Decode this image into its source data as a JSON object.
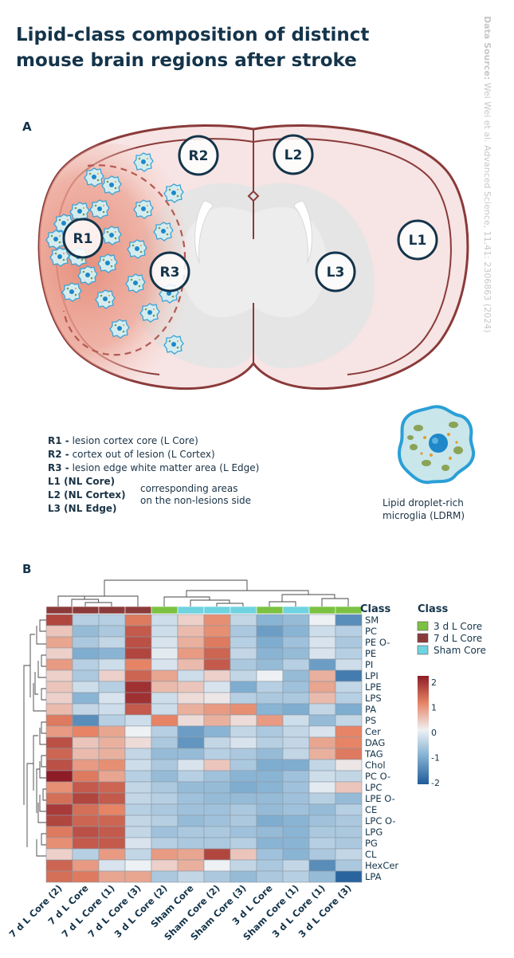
{
  "title_line1": "Lipid-class composition of distinct",
  "title_line2": "mouse brain regions after stroke",
  "source_label": "Data Source:",
  "source_text": "Wei Wei et al. Advanced Science, 11,41: 2306863 (2024)",
  "panel_a": "A",
  "panel_b": "B",
  "regions": {
    "r1": "R1",
    "r2": "R2",
    "r3": "R3",
    "l1": "L1",
    "l2": "L2",
    "l3": "L3"
  },
  "legend": {
    "r1_key": "R1 -",
    "r1_text": "lesion cortex core (L Core)",
    "r2_key": "R2 -",
    "r2_text": "cortex out of lesion (L Cortex)",
    "r3_key": "R3 -",
    "r3_text": "lesion edge white matter area (L Edge)",
    "l1_key": "L1 (NL Core)",
    "l2_key": "L2 (NL Cortex)",
    "l3_key": "L3 (NL Edge)",
    "corr_line1": "corresponding areas",
    "corr_line2": "on the non-lesions side",
    "ldrm_line1": "Lipid droplet-rich",
    "ldrm_line2": "microglia (LDRM)"
  },
  "colors": {
    "brain_outline": "#8a3a3a",
    "brain_fill": "#f7e6e6",
    "lesion": "#e99a86",
    "navy": "#14344a",
    "cell": "#3aa3d6",
    "cell_fill": "#cfe7ec",
    "class_3d": "#7cc242",
    "class_7d": "#8b3a3a",
    "class_sham": "#6fd3e0"
  },
  "chart_data": {
    "type": "heatmap",
    "title": "",
    "columns": [
      "7 d L Core (2)",
      "7 d L Core",
      "7 d L Core (1)",
      "7 d L Core (3)",
      "3 d L Core (2)",
      "Sham Core",
      "Sham Core (2)",
      "Sham Core (3)",
      "3 d L Core",
      "Sham Core (1)",
      "3 d L Core (1)",
      "3 d L Core (3)"
    ],
    "column_classes": [
      "7 d L Core",
      "7 d L Core",
      "7 d L Core",
      "7 d L Core",
      "3 d L Core",
      "Sham Core",
      "Sham Core",
      "Sham Core",
      "3 d L Core",
      "Sham Core",
      "3 d L Core",
      "3 d L Core"
    ],
    "rows": [
      "SM",
      "PC",
      "PE O-",
      "PE",
      "PI",
      "LPI",
      "LPE",
      "LPS",
      "PA",
      "PS",
      "Cer",
      "DAG",
      "TAG",
      "Chol",
      "PC O-",
      "LPC",
      "LPE O-",
      "CE",
      "LPC O-",
      "LPG",
      "PG",
      "CL",
      "HexCer",
      "LPA"
    ],
    "values": [
      [
        1.6,
        -0.5,
        -0.5,
        1.1,
        -0.3,
        0.3,
        0.9,
        -0.4,
        -0.9,
        -0.8,
        0.0,
        -1.4
      ],
      [
        0.4,
        -0.8,
        -0.6,
        1.4,
        -0.3,
        0.5,
        0.9,
        -0.6,
        -1.2,
        -0.9,
        -0.3,
        -0.5
      ],
      [
        0.7,
        -0.6,
        -0.4,
        1.5,
        -0.2,
        0.6,
        1.1,
        -0.5,
        -1.0,
        -0.7,
        -0.2,
        -0.6
      ],
      [
        0.3,
        -1.0,
        -0.9,
        1.6,
        -0.1,
        0.8,
        1.3,
        -0.4,
        -0.9,
        -0.8,
        -0.2,
        -0.5
      ],
      [
        0.8,
        -0.5,
        -0.3,
        1.0,
        -0.2,
        0.5,
        1.4,
        -0.6,
        -0.8,
        -0.5,
        -1.2,
        -0.3
      ],
      [
        0.3,
        -0.6,
        0.3,
        1.3,
        0.7,
        -0.3,
        0.3,
        -0.4,
        0.0,
        -0.8,
        0.6,
        -1.6
      ],
      [
        0.4,
        -0.3,
        -0.5,
        1.8,
        0.5,
        0.4,
        -0.2,
        -1.0,
        -0.5,
        -0.7,
        0.7,
        -0.4
      ],
      [
        0.3,
        -0.9,
        -0.2,
        1.8,
        -0.3,
        0.2,
        0.1,
        -0.5,
        -0.6,
        -0.6,
        0.5,
        -0.5
      ],
      [
        0.5,
        -0.4,
        -0.3,
        1.4,
        -0.3,
        0.6,
        0.8,
        0.9,
        -0.9,
        -1.0,
        -0.4,
        -1.0
      ],
      [
        1.1,
        -1.4,
        -0.5,
        -0.3,
        1.0,
        0.2,
        0.6,
        0.2,
        0.8,
        -0.3,
        -0.8,
        -0.4
      ],
      [
        0.8,
        1.0,
        0.7,
        0.0,
        -0.5,
        -1.2,
        -0.9,
        -0.4,
        -0.6,
        -0.4,
        -0.2,
        1.0
      ],
      [
        1.5,
        0.4,
        0.6,
        0.2,
        -0.6,
        -1.3,
        -0.4,
        -0.2,
        -0.5,
        -0.4,
        0.7,
        1.0
      ],
      [
        1.3,
        0.5,
        0.6,
        -0.4,
        -0.8,
        -0.8,
        -0.5,
        -0.6,
        -0.8,
        -0.4,
        0.6,
        1.1
      ],
      [
        1.5,
        0.8,
        0.9,
        -0.3,
        -0.6,
        -0.2,
        0.4,
        -0.6,
        -1.0,
        -1.0,
        -0.4,
        0.1
      ],
      [
        2.2,
        1.1,
        0.7,
        -0.5,
        -0.8,
        -0.5,
        -0.7,
        -0.9,
        -0.9,
        -0.7,
        -0.3,
        -0.4
      ],
      [
        0.9,
        1.4,
        1.3,
        -0.4,
        -0.6,
        -0.8,
        -0.8,
        -1.0,
        -0.9,
        -0.7,
        -0.1,
        0.4
      ],
      [
        1.2,
        1.6,
        1.4,
        -0.4,
        -0.5,
        -0.7,
        -0.8,
        -0.8,
        -0.8,
        -0.7,
        -0.5,
        -0.8
      ],
      [
        1.7,
        1.2,
        1.0,
        -0.5,
        -0.6,
        -0.7,
        -0.7,
        -0.6,
        -0.8,
        -0.7,
        -0.8,
        -0.5
      ],
      [
        1.6,
        1.3,
        1.3,
        -0.4,
        -0.5,
        -0.8,
        -0.7,
        -0.6,
        -1.0,
        -0.9,
        -0.7,
        -0.6
      ],
      [
        1.1,
        1.5,
        1.4,
        -0.4,
        -0.7,
        -0.6,
        -0.6,
        -0.7,
        -0.8,
        -0.9,
        -0.6,
        -0.6
      ],
      [
        0.9,
        1.4,
        1.4,
        -0.2,
        -0.5,
        -0.6,
        -0.6,
        -0.5,
        -0.9,
        -0.9,
        -0.5,
        -0.6
      ],
      [
        0.3,
        -0.5,
        0.8,
        -0.4,
        0.8,
        0.7,
        1.6,
        0.4,
        -0.7,
        -0.9,
        -0.6,
        -0.4
      ],
      [
        1.3,
        0.8,
        -0.2,
        0.0,
        0.3,
        0.6,
        0.0,
        -0.4,
        -0.6,
        -0.4,
        -1.4,
        -0.6
      ],
      [
        1.2,
        1.1,
        0.7,
        0.7,
        -0.6,
        -0.4,
        -0.6,
        -0.8,
        -0.6,
        -0.5,
        -0.8,
        -1.9
      ]
    ],
    "colorbar": {
      "min": -2,
      "max": 2,
      "ticks": [
        2,
        1,
        0,
        -1,
        -2
      ],
      "tick_labels": [
        "2",
        "1",
        "0",
        "-1",
        "-2"
      ]
    },
    "class_header": "Class",
    "class_legend_title": "Class",
    "class_legend": [
      {
        "label": "3 d L Core",
        "color": "#7cc242"
      },
      {
        "label": "7 d L Core",
        "color": "#8b3a3a"
      },
      {
        "label": "Sham Core",
        "color": "#6fd3e0"
      }
    ]
  }
}
